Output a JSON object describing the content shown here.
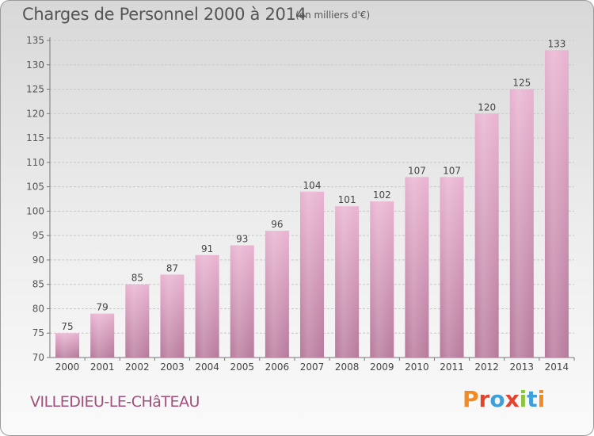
{
  "chart_data": {
    "type": "bar",
    "title": "Charges de Personnel 2000 à 2014",
    "subtitle": "(en milliers d'€)",
    "categories": [
      "2000",
      "2001",
      "2002",
      "2003",
      "2004",
      "2005",
      "2006",
      "2007",
      "2008",
      "2009",
      "2010",
      "2011",
      "2012",
      "2013",
      "2014"
    ],
    "values": [
      75,
      79,
      85,
      87,
      91,
      93,
      96,
      104,
      101,
      102,
      107,
      107,
      120,
      125,
      133
    ],
    "ylim": [
      70,
      135
    ],
    "yticks": [
      70,
      75,
      80,
      85,
      90,
      95,
      100,
      105,
      110,
      115,
      120,
      125,
      130,
      135
    ],
    "grid": true,
    "xlabel": "",
    "ylabel": ""
  },
  "footer": {
    "location": "VILLEDIEU-LE-CHâTEAU",
    "brand": "Proxiti"
  },
  "colors": {
    "bar_light": "#e9b3d1",
    "bar_dark": "#b7799b",
    "location_text": "#a0507a",
    "brand_letters": [
      "#f08a24",
      "#e2452f",
      "#3f9fd8",
      "#e2452f",
      "#8cc43f",
      "#3f9fd8",
      "#f08a24"
    ]
  }
}
